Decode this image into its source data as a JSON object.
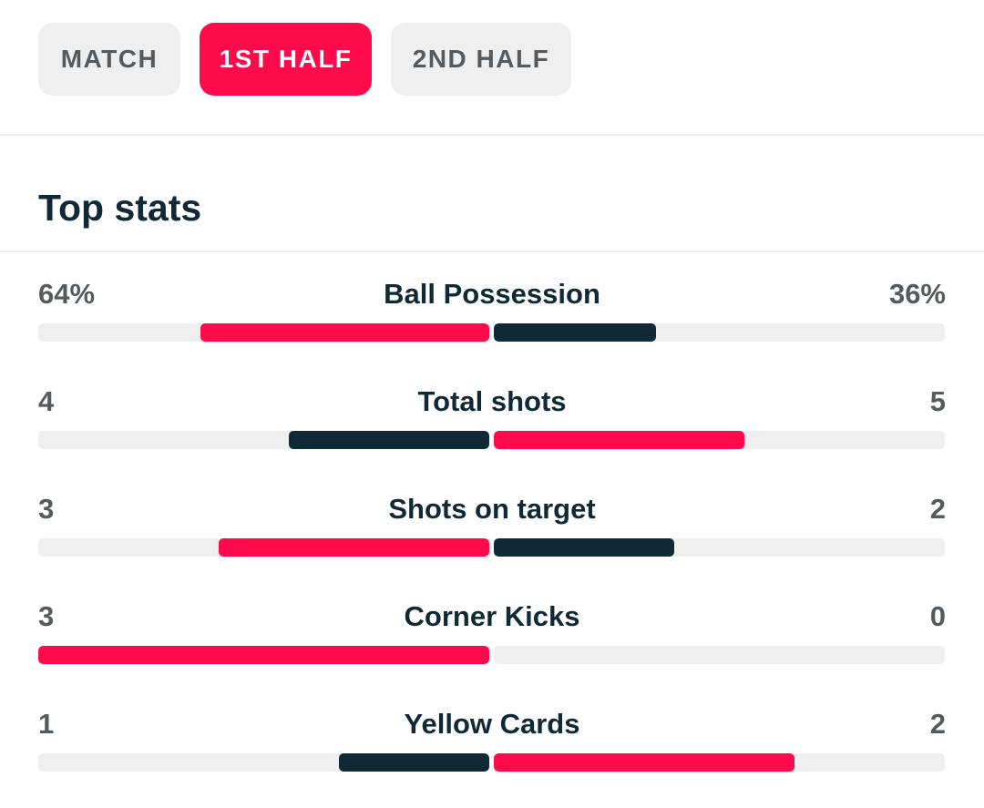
{
  "tabs": [
    {
      "label": "MATCH",
      "active": false
    },
    {
      "label": "1ST HALF",
      "active": true
    },
    {
      "label": "2ND HALF",
      "active": false
    }
  ],
  "section": {
    "title": "Top stats"
  },
  "colors": {
    "accent": "#ff0a4a",
    "dark": "#0f2a36",
    "track": "#efefef"
  },
  "stats": [
    {
      "label": "Ball Possession",
      "home_display": "64%",
      "away_display": "36%",
      "home_value": 64,
      "away_value": 36,
      "leader": "home"
    },
    {
      "label": "Total shots",
      "home_display": "4",
      "away_display": "5",
      "home_value": 4,
      "away_value": 5,
      "leader": "away"
    },
    {
      "label": "Shots on target",
      "home_display": "3",
      "away_display": "2",
      "home_value": 3,
      "away_value": 2,
      "leader": "home"
    },
    {
      "label": "Corner Kicks",
      "home_display": "3",
      "away_display": "0",
      "home_value": 3,
      "away_value": 0,
      "leader": "home"
    },
    {
      "label": "Yellow Cards",
      "home_display": "1",
      "away_display": "2",
      "home_value": 1,
      "away_value": 2,
      "leader": "away"
    }
  ]
}
